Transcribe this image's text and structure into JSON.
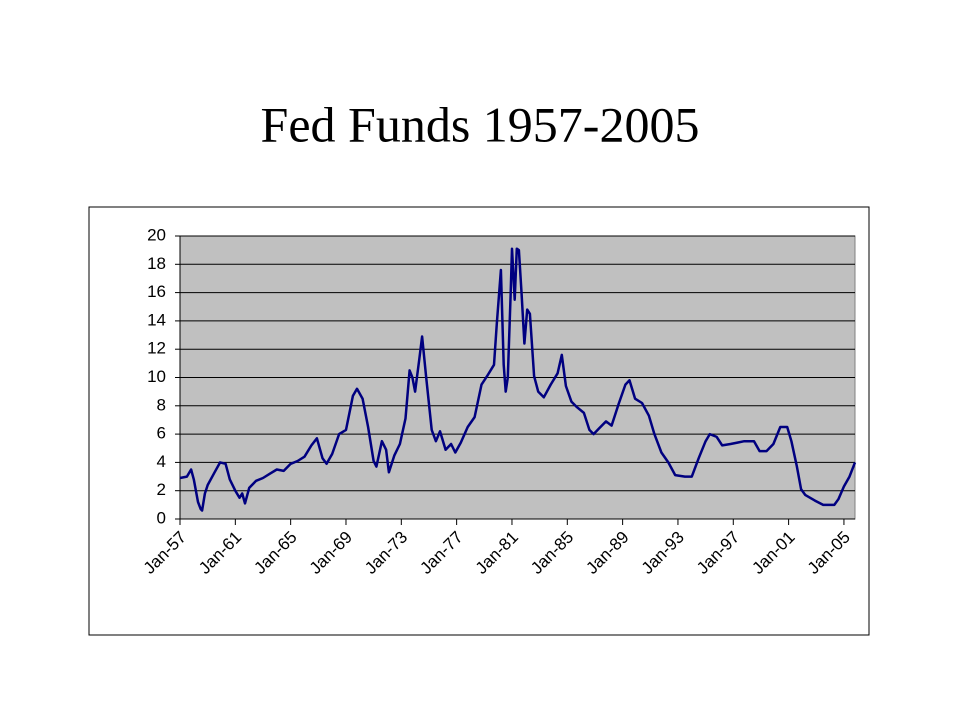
{
  "chart_data": {
    "type": "line",
    "title": "Fed Funds 1957-2005",
    "x": [
      1957.0,
      1957.5,
      1957.8,
      1958.0,
      1958.3,
      1958.5,
      1958.6,
      1958.8,
      1959.0,
      1959.5,
      1959.9,
      1960.3,
      1960.6,
      1961.0,
      1961.3,
      1961.5,
      1961.7,
      1962.0,
      1962.5,
      1963.0,
      1963.5,
      1964.0,
      1964.5,
      1965.0,
      1965.5,
      1966.0,
      1966.5,
      1966.9,
      1967.3,
      1967.6,
      1968.0,
      1968.5,
      1969.0,
      1969.5,
      1969.8,
      1970.2,
      1970.6,
      1971.0,
      1971.2,
      1971.6,
      1971.9,
      1972.1,
      1972.5,
      1972.9,
      1973.3,
      1973.6,
      1973.8,
      1974.0,
      1974.3,
      1974.5,
      1974.8,
      1975.2,
      1975.5,
      1975.8,
      1976.2,
      1976.6,
      1976.9,
      1977.3,
      1977.8,
      1978.3,
      1978.8,
      1979.2,
      1979.7,
      1979.9,
      1980.2,
      1980.4,
      1980.55,
      1980.7,
      1980.9,
      1981.0,
      1981.2,
      1981.35,
      1981.5,
      1981.7,
      1981.9,
      1982.1,
      1982.3,
      1982.6,
      1982.9,
      1983.3,
      1983.8,
      1984.3,
      1984.6,
      1984.9,
      1985.3,
      1985.7,
      1986.2,
      1986.6,
      1986.9,
      1987.3,
      1987.8,
      1988.2,
      1988.7,
      1989.2,
      1989.5,
      1989.9,
      1990.4,
      1990.9,
      1991.3,
      1991.8,
      1992.3,
      1992.8,
      1993.5,
      1994.0,
      1994.5,
      1995.0,
      1995.3,
      1995.8,
      1996.2,
      1996.8,
      1997.3,
      1997.8,
      1998.5,
      1998.9,
      1999.4,
      1999.9,
      2000.4,
      2000.9,
      2001.2,
      2001.6,
      2001.9,
      2002.2,
      2002.9,
      2003.5,
      2004.3,
      2004.6,
      2005.0,
      2005.4,
      2005.8
    ],
    "series": [
      {
        "name": "Fed Funds",
        "color": "#000080",
        "values": [
          2.9,
          3.0,
          3.5,
          2.8,
          1.2,
          0.7,
          0.6,
          1.8,
          2.4,
          3.3,
          4.0,
          3.9,
          2.8,
          2.0,
          1.5,
          1.8,
          1.1,
          2.2,
          2.7,
          2.9,
          3.2,
          3.5,
          3.4,
          3.9,
          4.1,
          4.4,
          5.2,
          5.7,
          4.3,
          3.9,
          4.6,
          6.0,
          6.3,
          8.7,
          9.2,
          8.5,
          6.5,
          4.1,
          3.7,
          5.5,
          4.9,
          3.3,
          4.5,
          5.3,
          7.1,
          10.5,
          10.0,
          9.0,
          11.3,
          12.9,
          10.0,
          6.3,
          5.5,
          6.2,
          4.9,
          5.3,
          4.7,
          5.4,
          6.5,
          7.2,
          9.5,
          10.1,
          10.9,
          13.8,
          17.6,
          10.9,
          9.0,
          10.0,
          15.8,
          19.1,
          15.5,
          19.1,
          19.0,
          15.9,
          12.4,
          14.8,
          14.5,
          10.1,
          9.0,
          8.6,
          9.5,
          10.3,
          11.6,
          9.4,
          8.3,
          7.9,
          7.5,
          6.3,
          6.0,
          6.4,
          6.9,
          6.6,
          8.1,
          9.5,
          9.8,
          8.5,
          8.2,
          7.3,
          6.0,
          4.7,
          4.0,
          3.1,
          3.0,
          3.0,
          4.3,
          5.5,
          6.0,
          5.8,
          5.2,
          5.3,
          5.4,
          5.5,
          5.5,
          4.8,
          4.8,
          5.3,
          6.5,
          6.5,
          5.5,
          3.7,
          2.1,
          1.7,
          1.3,
          1.0,
          1.0,
          1.4,
          2.3,
          3.0,
          4.0
        ]
      }
    ],
    "xlim": [
      1957,
      2005.8
    ],
    "xticks": [
      {
        "value": 1957,
        "label": "Jan-57"
      },
      {
        "value": 1961,
        "label": "Jan-61"
      },
      {
        "value": 1965,
        "label": "Jan-65"
      },
      {
        "value": 1969,
        "label": "Jan-69"
      },
      {
        "value": 1973,
        "label": "Jan-73"
      },
      {
        "value": 1977,
        "label": "Jan-77"
      },
      {
        "value": 1981,
        "label": "Jan-81"
      },
      {
        "value": 1985,
        "label": "Jan-85"
      },
      {
        "value": 1989,
        "label": "Jan-89"
      },
      {
        "value": 1993,
        "label": "Jan-93"
      },
      {
        "value": 1997,
        "label": "Jan-97"
      },
      {
        "value": 2001,
        "label": "Jan-01"
      },
      {
        "value": 2005,
        "label": "Jan-05"
      }
    ],
    "ylim": [
      0,
      20
    ],
    "yticks": [
      0,
      2,
      4,
      6,
      8,
      10,
      12,
      14,
      16,
      18,
      20
    ],
    "grid": true
  }
}
